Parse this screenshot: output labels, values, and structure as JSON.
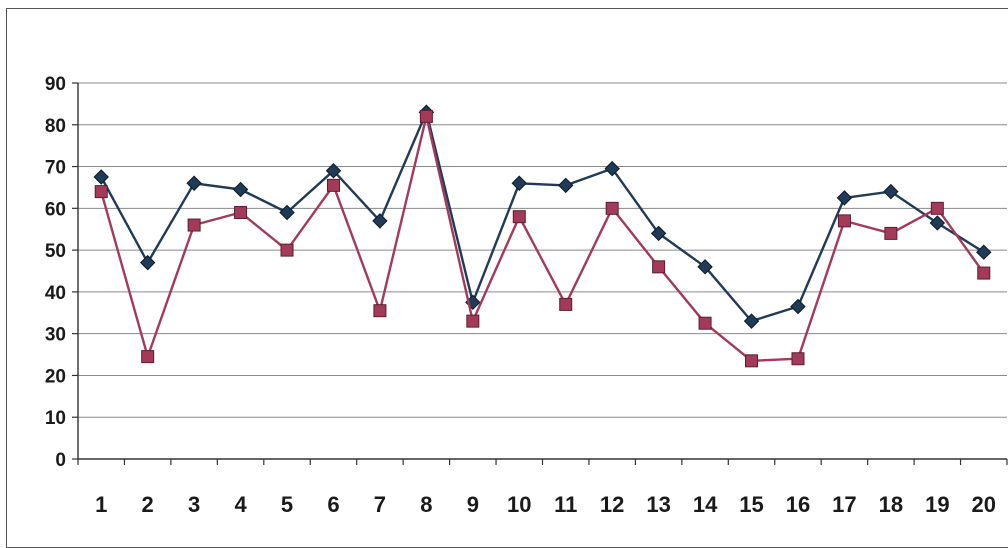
{
  "chart_data": {
    "type": "line",
    "title": "",
    "xlabel": "",
    "ylabel": "",
    "x": [
      1,
      2,
      3,
      4,
      5,
      6,
      7,
      8,
      9,
      10,
      11,
      12,
      13,
      14,
      15,
      16,
      17,
      18,
      19,
      20
    ],
    "x_tick_labels": [
      "1",
      "2",
      "3",
      "4",
      "5",
      "6",
      "7",
      "8",
      "9",
      "10",
      "11",
      "12",
      "13",
      "14",
      "15",
      "16",
      "17",
      "18",
      "19",
      "20"
    ],
    "y_tick_labels": [
      "0",
      "10",
      "20",
      "30",
      "40",
      "50",
      "60",
      "70",
      "80",
      "90"
    ],
    "ylim": [
      0,
      90
    ],
    "grid": true,
    "legend": "none",
    "series": [
      {
        "marker": "diamond",
        "color": "#1f3b57",
        "values": [
          67.5,
          47,
          66,
          64.5,
          59,
          69,
          57,
          83,
          37.5,
          66,
          65.5,
          69.5,
          54,
          46,
          33,
          36.5,
          62.5,
          64,
          56.5,
          49.5
        ]
      },
      {
        "marker": "square",
        "color": "#a33a5a",
        "values": [
          64,
          24.5,
          56,
          59,
          50,
          65.5,
          35.5,
          82,
          33,
          58,
          37,
          60,
          46,
          32.5,
          23.5,
          24,
          57,
          54,
          60,
          44.5
        ]
      }
    ]
  }
}
